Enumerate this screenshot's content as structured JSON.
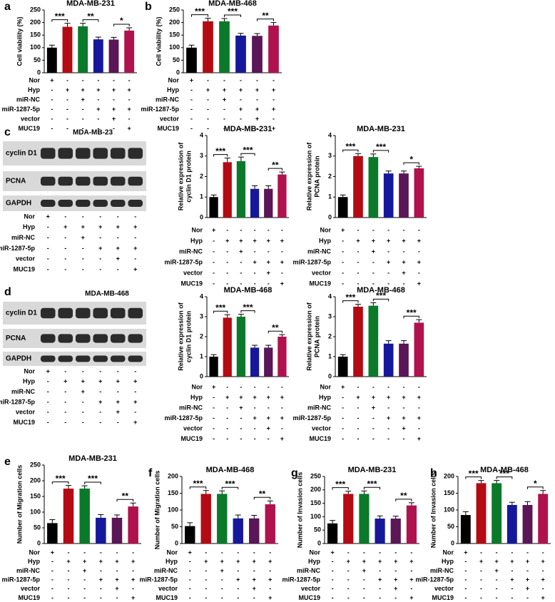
{
  "chart_data": [
    {
      "type": "bar",
      "letter": "a",
      "title": "MDA-MB-231",
      "ylabel": [
        "Cell viability (%)"
      ],
      "ylim": [
        0,
        250
      ],
      "yticks": [
        0,
        50,
        100,
        150,
        200,
        250
      ],
      "colors": [
        "#000000",
        "#b40a14",
        "#0a7a2a",
        "#16189c",
        "#5a1656",
        "#b0124e"
      ],
      "values": [
        100,
        183,
        185,
        133,
        132,
        168
      ],
      "errors": [
        10,
        14,
        12,
        9,
        9,
        11
      ],
      "significance": [
        "***",
        "**",
        "*"
      ]
    },
    {
      "type": "bar",
      "letter": "b",
      "title": "MDA-MB-468",
      "ylabel": [
        "Cell viability (%)"
      ],
      "ylim": [
        0,
        250
      ],
      "yticks": [
        0,
        50,
        100,
        150,
        200,
        250
      ],
      "colors": [
        "#000000",
        "#b40a14",
        "#0a7a2a",
        "#16189c",
        "#5a1656",
        "#b0124e"
      ],
      "values": [
        100,
        205,
        205,
        148,
        147,
        188
      ],
      "errors": [
        10,
        12,
        11,
        9,
        9,
        12
      ],
      "significance": [
        "***",
        "***",
        "**"
      ]
    },
    {
      "type": "bar",
      "title": "MDA-MB-231",
      "ylabel": [
        "Relative expression of",
        "cyclin D1 protein"
      ],
      "ylim": [
        0,
        4
      ],
      "yticks": [
        0,
        1,
        2,
        3,
        4
      ],
      "colors": [
        "#000000",
        "#b40a14",
        "#0a7a2a",
        "#16189c",
        "#5a1656",
        "#b0124e"
      ],
      "values": [
        1.0,
        2.7,
        2.75,
        1.4,
        1.4,
        2.1
      ],
      "errors": [
        0.1,
        0.2,
        0.2,
        0.15,
        0.15,
        0.12
      ],
      "significance": [
        "***",
        "***",
        "**"
      ]
    },
    {
      "type": "bar",
      "title": "MDA-MB-231",
      "ylabel": [
        "Relative expression of",
        "PCNA protein"
      ],
      "ylim": [
        0,
        4
      ],
      "yticks": [
        0,
        1,
        2,
        3,
        4
      ],
      "colors": [
        "#000000",
        "#b40a14",
        "#0a7a2a",
        "#16189c",
        "#5a1656",
        "#b0124e"
      ],
      "values": [
        1.0,
        3.0,
        2.95,
        2.15,
        2.15,
        2.4
      ],
      "errors": [
        0.1,
        0.12,
        0.15,
        0.12,
        0.12,
        0.1
      ],
      "significance": [
        "***",
        "***",
        "*"
      ]
    },
    {
      "type": "bar",
      "title": "MDA-MB-468",
      "ylabel": [
        "Relative expression of",
        "cyclin D1 protein"
      ],
      "ylim": [
        0,
        4
      ],
      "yticks": [
        0,
        1,
        2,
        3,
        4
      ],
      "colors": [
        "#000000",
        "#b40a14",
        "#0a7a2a",
        "#16189c",
        "#5a1656",
        "#b0124e"
      ],
      "values": [
        1.0,
        2.95,
        3.0,
        1.45,
        1.45,
        2.0
      ],
      "errors": [
        0.1,
        0.15,
        0.12,
        0.12,
        0.12,
        0.1
      ],
      "significance": [
        "***",
        "***",
        "**"
      ]
    },
    {
      "type": "bar",
      "title": "MDA-MB-468",
      "ylabel": [
        "Relative expression of",
        "PCNA protein"
      ],
      "ylim": [
        0,
        4
      ],
      "yticks": [
        0,
        1,
        2,
        3,
        4
      ],
      "colors": [
        "#000000",
        "#b40a14",
        "#0a7a2a",
        "#16189c",
        "#5a1656",
        "#b0124e"
      ],
      "values": [
        1.0,
        3.5,
        3.55,
        1.65,
        1.65,
        2.7
      ],
      "errors": [
        0.1,
        0.12,
        0.15,
        0.15,
        0.15,
        0.15
      ],
      "significance": [
        "***",
        "***",
        "***"
      ]
    },
    {
      "type": "bar",
      "letter": "e",
      "title": "MDA-MB-231",
      "ylabel": [
        "Number of Migration cells"
      ],
      "ylim": [
        0,
        250
      ],
      "yticks": [
        0,
        50,
        100,
        150,
        200,
        250
      ],
      "colors": [
        "#000000",
        "#b40a14",
        "#0a7a2a",
        "#16189c",
        "#5a1656",
        "#b0124e"
      ],
      "values": [
        65,
        175,
        175,
        82,
        82,
        118
      ],
      "errors": [
        11,
        10,
        9,
        10,
        9,
        11
      ],
      "significance": [
        "***",
        "***",
        "**"
      ]
    },
    {
      "type": "bar",
      "letter": "f",
      "title": "MDA-MB-468",
      "ylabel": [
        "Number of Migration cells"
      ],
      "ylim": [
        0,
        200
      ],
      "yticks": [
        0,
        50,
        100,
        150,
        200
      ],
      "colors": [
        "#000000",
        "#b40a14",
        "#0a7a2a",
        "#16189c",
        "#5a1656",
        "#b0124e"
      ],
      "values": [
        52,
        148,
        148,
        75,
        75,
        117
      ],
      "errors": [
        10,
        10,
        9,
        10,
        9,
        10
      ],
      "significance": [
        "***",
        "***",
        "**"
      ]
    },
    {
      "type": "bar",
      "letter": "g",
      "title": "MDA-MB-231",
      "ylabel": [
        "Number of Invasion cells"
      ],
      "ylim": [
        0,
        250
      ],
      "yticks": [
        0,
        50,
        100,
        150,
        200,
        250
      ],
      "colors": [
        "#000000",
        "#b40a14",
        "#0a7a2a",
        "#16189c",
        "#5a1656",
        "#b0124e"
      ],
      "values": [
        75,
        185,
        185,
        93,
        93,
        142
      ],
      "errors": [
        11,
        10,
        11,
        10,
        9,
        10
      ],
      "significance": [
        "***",
        "***",
        "**"
      ]
    },
    {
      "type": "bar",
      "letter": "h",
      "title": "MDA-MB-468",
      "ylabel": [
        "Number of Invasion cells"
      ],
      "ylim": [
        0,
        200
      ],
      "yticks": [
        0,
        50,
        100,
        150,
        200
      ],
      "colors": [
        "#000000",
        "#b40a14",
        "#0a7a2a",
        "#16189c",
        "#5a1656",
        "#b0124e"
      ],
      "values": [
        85,
        180,
        180,
        115,
        115,
        148
      ],
      "errors": [
        10,
        8,
        8,
        8,
        10,
        10
      ],
      "significance": [
        "***",
        "***",
        "*"
      ]
    }
  ],
  "blots": [
    {
      "letter": "c",
      "title": "MDA-MB-23",
      "rows": [
        "cyclin D1",
        "PCNA",
        "GAPDH"
      ]
    },
    {
      "letter": "d",
      "title": "MDA-MB-468",
      "rows": [
        "cyclin D1",
        "PCNA",
        "GAPDH"
      ]
    }
  ],
  "conditions": {
    "labels": [
      "Nor",
      "Hyp",
      "miR-NC",
      "miR-1287-5p",
      "vector",
      "MUC19"
    ],
    "signs": [
      [
        "+",
        "-",
        "-",
        "-",
        "-",
        "-"
      ],
      [
        "-",
        "+",
        "+",
        "+",
        "+",
        "+"
      ],
      [
        "-",
        "-",
        "+",
        "-",
        "-",
        "-"
      ],
      [
        "-",
        "-",
        "-",
        "+",
        "+",
        "+"
      ],
      [
        "-",
        "-",
        "-",
        "-",
        "+",
        "-"
      ],
      [
        "-",
        "-",
        "-",
        "-",
        "-",
        "+"
      ]
    ]
  }
}
